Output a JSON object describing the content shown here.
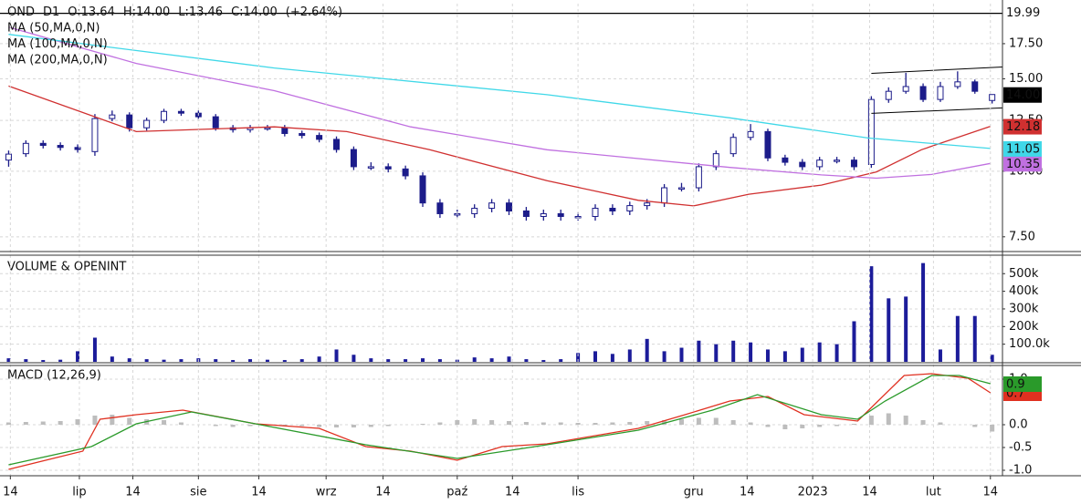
{
  "chart_data": [
    {
      "type": "candlestick",
      "header": [
        "OND",
        "D1",
        "O:13.64",
        "H:14.00",
        "L:13.46",
        "C:14.00",
        "(+2.64%)"
      ],
      "color": "#1c1c8a",
      "log_scale": true,
      "grid": true,
      "xlim": [
        -0.5,
        57.6
      ],
      "ylim": [
        7.03,
        20.86
      ],
      "yticks": [
        {
          "value": 7.5,
          "label": "7.50"
        },
        {
          "value": 10,
          "label": "10.00"
        },
        {
          "value": 12.5,
          "label": "12.50"
        },
        {
          "value": 15,
          "label": "15.00"
        },
        {
          "value": 17.5,
          "label": "17.50"
        }
      ],
      "open": [
        10.5,
        10.8,
        11.3,
        11.2,
        11.1,
        10.9,
        12.6,
        12.8,
        12.1,
        12.5,
        13.0,
        12.9,
        12.7,
        12.1,
        12.0,
        12.1,
        12.1,
        11.8,
        11.7,
        11.5,
        11.0,
        10.2,
        10.2,
        10.1,
        9.8,
        8.7,
        8.3,
        8.3,
        8.5,
        8.7,
        8.4,
        8.2,
        8.3,
        8.2,
        8.2,
        8.5,
        8.4,
        8.6,
        8.7,
        9.3,
        9.3,
        10.2,
        10.8,
        11.6,
        11.9,
        10.6,
        10.4,
        10.2,
        10.5,
        10.5,
        10.3,
        13.7,
        14.2,
        14.5,
        13.7,
        14.5,
        14.8,
        13.64
      ],
      "high": [
        10.95,
        11.45,
        11.45,
        11.35,
        11.25,
        12.85,
        13.05,
        12.95,
        12.65,
        13.15,
        13.15,
        13.05,
        12.85,
        12.25,
        12.25,
        12.25,
        12.25,
        11.95,
        11.85,
        11.65,
        11.15,
        10.4,
        10.35,
        10.25,
        9.95,
        8.85,
        8.45,
        8.65,
        8.85,
        8.85,
        8.55,
        8.45,
        8.45,
        8.35,
        8.65,
        8.65,
        8.75,
        8.85,
        9.45,
        9.5,
        10.35,
        10.95,
        11.8,
        12.3,
        12.05,
        10.75,
        10.55,
        10.65,
        10.65,
        10.65,
        13.9,
        14.45,
        15.4,
        14.7,
        14.8,
        15.5,
        14.95,
        14.0
      ],
      "low": [
        10.2,
        10.65,
        11.05,
        10.95,
        10.85,
        10.7,
        12.45,
        11.9,
        11.95,
        12.35,
        12.75,
        12.55,
        11.95,
        11.85,
        11.85,
        11.95,
        11.65,
        11.55,
        11.35,
        10.85,
        10.05,
        10.05,
        9.95,
        9.65,
        8.55,
        8.15,
        8.15,
        8.15,
        8.35,
        8.25,
        8.05,
        8.05,
        8.05,
        8.05,
        8.05,
        8.25,
        8.25,
        8.45,
        8.55,
        9.15,
        9.15,
        10.05,
        10.65,
        11.45,
        10.45,
        10.25,
        10.05,
        10.05,
        10.35,
        10.05,
        10.15,
        13.5,
        14.05,
        13.55,
        13.55,
        14.35,
        14.05,
        13.46
      ],
      "close": [
        10.78,
        11.3,
        11.2,
        11.1,
        11.0,
        12.6,
        12.8,
        12.1,
        12.5,
        13.0,
        12.9,
        12.7,
        12.1,
        12.0,
        12.1,
        12.1,
        11.8,
        11.7,
        11.5,
        11.0,
        10.2,
        10.2,
        10.1,
        9.8,
        8.7,
        8.3,
        8.3,
        8.5,
        8.7,
        8.4,
        8.2,
        8.3,
        8.2,
        8.2,
        8.5,
        8.4,
        8.6,
        8.7,
        9.3,
        9.3,
        10.2,
        10.8,
        11.6,
        11.9,
        10.6,
        10.4,
        10.2,
        10.5,
        10.5,
        10.2,
        13.7,
        14.2,
        14.5,
        13.7,
        14.5,
        14.8,
        14.2,
        14.0
      ],
      "series": [
        {
          "name": "MA (50,MA,0,N)",
          "color": "#d03030",
          "text_color": "#ffffff",
          "x": [
            0,
            7.4,
            15.4,
            19.6,
            24.4,
            31.2,
            36.5,
            39.7,
            42.9,
            47.1,
            50.3,
            52.9,
            56.9
          ],
          "values": [
            14.53,
            11.9,
            12.15,
            11.9,
            10.99,
            9.59,
            8.8,
            8.59,
            9.04,
            9.41,
            9.97,
            10.99,
            12.18
          ],
          "last": {
            "value": 12.18,
            "label": "12.18"
          }
        },
        {
          "name": "MA (100,MA,0,N)",
          "color": "#c070e0",
          "text_color": "#ffffff",
          "x": [
            0,
            7.4,
            15.4,
            23.3,
            31.2,
            36.5,
            41.8,
            47.1,
            50.3,
            53.5,
            56.9
          ],
          "values": [
            18.82,
            16.05,
            14.24,
            12.15,
            10.99,
            10.57,
            10.17,
            9.84,
            9.7,
            9.86,
            10.35
          ],
          "last": {
            "value": 10.35,
            "label": "10.35"
          }
        },
        {
          "name": "MA (200,MA,0,N)",
          "color": "#40d8e8",
          "text_color": "#000000",
          "x": [
            0,
            15.4,
            31.2,
            41.8,
            49.8,
            56.9
          ],
          "values": [
            18.23,
            15.73,
            13.99,
            12.64,
            11.57,
            11.05
          ],
          "last": {
            "value": 11.05,
            "label": "11.05"
          }
        }
      ],
      "trendlines": [
        {
          "x": [
            50,
            57.6
          ],
          "values": [
            15.36,
            15.8
          ]
        },
        {
          "x": [
            50,
            57.6
          ],
          "values": [
            12.89,
            13.2
          ]
        }
      ],
      "max_line": {
        "value": 19.99,
        "label": "19.99"
      },
      "last_price": {
        "value": 14.0,
        "label": "14.00"
      }
    },
    {
      "type": "bar",
      "title": "VOLUME & OPENINT",
      "color": "#1c1c9a",
      "grid": true,
      "xlim": [
        -0.5,
        57.6
      ],
      "ylim": [
        0,
        584000
      ],
      "yticks": [
        {
          "value": 100000,
          "label": "100.0k"
        },
        {
          "value": 200000,
          "label": "200k"
        },
        {
          "value": 300000,
          "label": "300k"
        },
        {
          "value": 400000,
          "label": "400k"
        },
        {
          "value": 500000,
          "label": "500k"
        }
      ],
      "values": [
        20000,
        15000,
        10000,
        12000,
        60000,
        137000,
        30000,
        20000,
        15000,
        12000,
        15000,
        20000,
        15000,
        10000,
        15000,
        12000,
        10000,
        15000,
        30000,
        70000,
        40000,
        20000,
        15000,
        15000,
        20000,
        15000,
        12000,
        25000,
        20000,
        30000,
        15000,
        10000,
        15000,
        50000,
        60000,
        45000,
        70000,
        130000,
        60000,
        80000,
        120000,
        100000,
        120000,
        110000,
        70000,
        60000,
        80000,
        110000,
        100000,
        230000,
        542000,
        360000,
        370000,
        560000,
        70000,
        260000,
        260000,
        40000
      ]
    },
    {
      "type": "line",
      "title": "MACD (12,26,9)",
      "grid": true,
      "xlim": [
        -0.5,
        57.6
      ],
      "ylim": [
        -1.12,
        1.26
      ],
      "yticks": [
        {
          "value": -1.0,
          "label": "-1.0"
        },
        -0.5,
        {
          "value": 0,
          "label": "0.0"
        },
        {
          "value": 1.0,
          "label": "1.0"
        }
      ],
      "xticks": [
        {
          "value": 0.1,
          "label": "14"
        },
        {
          "value": 4.1,
          "label": "lip"
        },
        {
          "value": 7.2,
          "label": "14"
        },
        {
          "value": 11,
          "label": "sie"
        },
        {
          "value": 14.5,
          "label": "14"
        },
        {
          "value": 18.4,
          "label": "wrz"
        },
        {
          "value": 21.7,
          "label": "14"
        },
        {
          "value": 26,
          "label": "paź"
        },
        {
          "value": 29.2,
          "label": "14"
        },
        {
          "value": 33,
          "label": "lis"
        },
        {
          "value": 39.7,
          "label": "gru"
        },
        {
          "value": 42.8,
          "label": "14"
        },
        {
          "value": 46.6,
          "label": "2023"
        },
        {
          "value": 49.9,
          "label": "14"
        },
        {
          "value": 53.6,
          "label": "lut"
        },
        {
          "value": 56.9,
          "label": "14"
        }
      ],
      "histogram": {
        "color": "#bdbdbd",
        "values": [
          0.05,
          0.06,
          0.07,
          0.08,
          0.12,
          0.2,
          0.22,
          0.15,
          0.12,
          0.1,
          0.05,
          0.0,
          -0.03,
          -0.05,
          -0.03,
          -0.02,
          -0.02,
          -0.03,
          -0.05,
          -0.06,
          -0.06,
          -0.05,
          -0.03,
          0.0,
          0.02,
          0.05,
          0.1,
          0.12,
          0.1,
          0.08,
          0.06,
          0.05,
          0.05,
          0.04,
          0.04,
          0.05,
          0.06,
          0.08,
          0.1,
          0.12,
          0.15,
          0.15,
          0.1,
          0.05,
          -0.05,
          -0.1,
          -0.08,
          -0.05,
          -0.03,
          0.02,
          0.2,
          0.25,
          0.2,
          0.1,
          0.05,
          0.0,
          -0.05,
          -0.15
        ]
      },
      "series": [
        {
          "color": "#e03020",
          "text_color": "#ffffff",
          "x": [
            0,
            4.3,
            5.3,
            7.4,
            10.1,
            14.3,
            18,
            20.7,
            23.3,
            26,
            28.6,
            31.2,
            36.5,
            39.2,
            41.8,
            44,
            46.1,
            49.2,
            51.9,
            53.5,
            55.6,
            56.9
          ],
          "values": [
            -0.98,
            -0.58,
            0.12,
            0.22,
            0.32,
            0.02,
            -0.08,
            -0.48,
            -0.58,
            -0.78,
            -0.48,
            -0.42,
            -0.08,
            0.22,
            0.52,
            0.62,
            0.22,
            0.08,
            1.08,
            1.12,
            1.02,
            0.7
          ],
          "last": {
            "value": 0.7,
            "label": "0.7"
          }
        },
        {
          "color": "#2a9a2a",
          "text_color": "#ffffff",
          "x": [
            0,
            4.8,
            7.4,
            10.6,
            14.3,
            20.7,
            26,
            31.2,
            36.5,
            40.8,
            43.4,
            47.1,
            49.2,
            50.8,
            53.5,
            55.1,
            56.9
          ],
          "values": [
            -0.88,
            -0.48,
            0.02,
            0.28,
            0.02,
            -0.44,
            -0.74,
            -0.44,
            -0.12,
            0.32,
            0.66,
            0.22,
            0.12,
            0.52,
            1.08,
            1.08,
            0.9
          ],
          "last": {
            "value": 0.9,
            "label": "0.9"
          }
        }
      ]
    }
  ]
}
